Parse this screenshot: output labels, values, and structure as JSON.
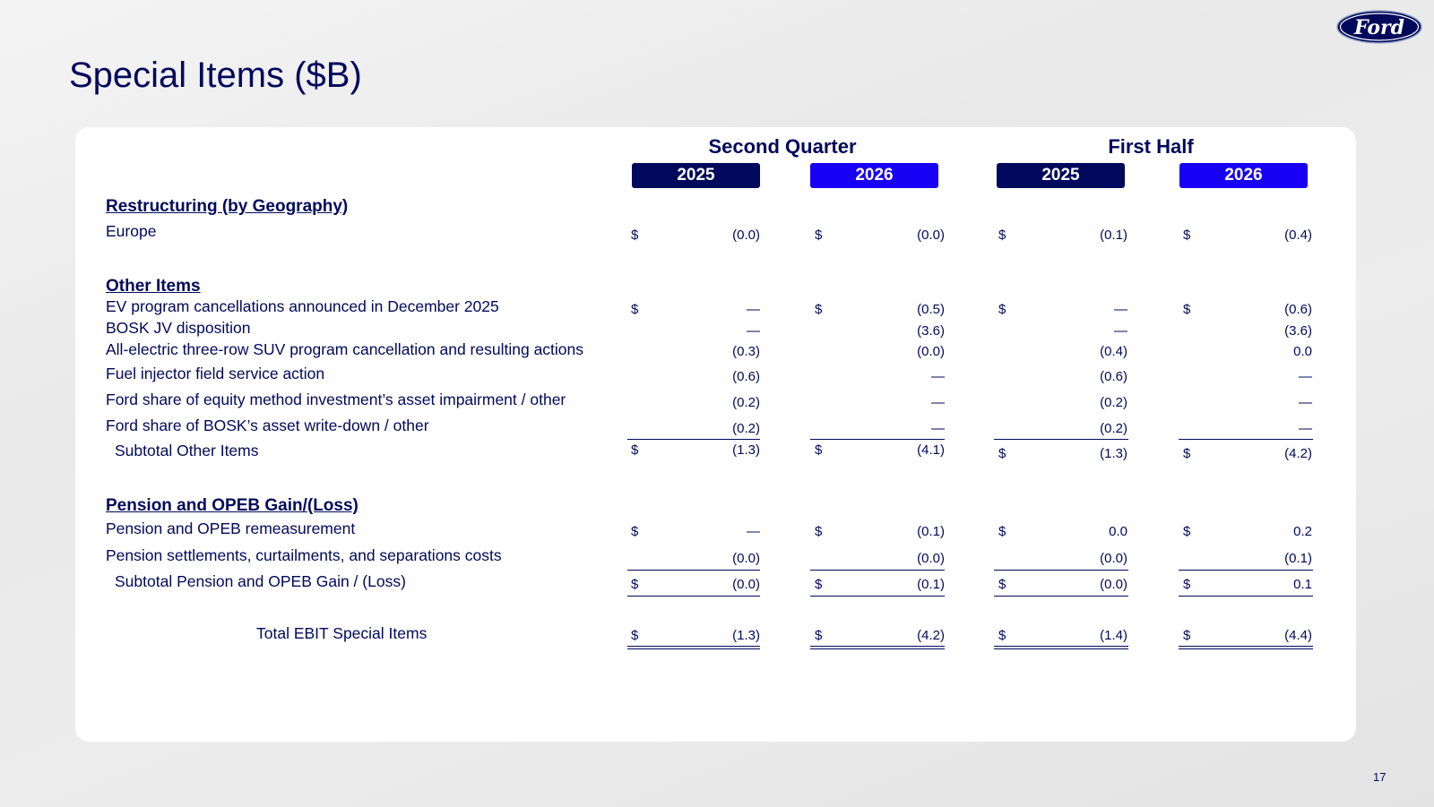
{
  "page": {
    "title": "Special Items ($B)",
    "page_number": "17"
  },
  "logo": {
    "text": "Ford",
    "color": "#00095b"
  },
  "groups": [
    {
      "title": "Second Quarter",
      "years": [
        "2025",
        "2026"
      ]
    },
    {
      "title": "First Half",
      "years": [
        "2025",
        "2026"
      ]
    }
  ],
  "year_colors": {
    "prior": "#00095b",
    "current": "#1700f4"
  },
  "currency_symbol": "$",
  "sections": {
    "restructuring": "Restructuring (by Geography)",
    "other": "Other Items",
    "pension": "Pension and OPEB Gain/(Loss)"
  },
  "rows": [
    {
      "label": "Europe",
      "values": [
        "(0.0)",
        "(0.0)",
        "(0.1)",
        "(0.4)"
      ]
    },
    {
      "label": "EV program cancellations announced in December 2025",
      "values": [
        "—",
        "(0.5)",
        "—",
        "(0.6)"
      ]
    },
    {
      "label": "BOSK JV disposition",
      "values": [
        "—",
        "(3.6)",
        "—",
        "(3.6)"
      ]
    },
    {
      "label": "All-electric three-row SUV program cancellation and resulting actions",
      "values": [
        "(0.3)",
        "(0.0)",
        "(0.4)",
        "0.0"
      ]
    },
    {
      "label": "Fuel injector field service action",
      "values": [
        "(0.6)",
        "—",
        "(0.6)",
        "—"
      ]
    },
    {
      "label": "Ford share of equity method investment’s asset impairment / other",
      "values": [
        "(0.2)",
        "—",
        "(0.2)",
        "—"
      ]
    },
    {
      "label": "Ford share of BOSK’s asset write-down / other",
      "values": [
        "(0.2)",
        "—",
        "(0.2)",
        "—"
      ]
    },
    {
      "label": "Subtotal Other Items",
      "values": [
        "(1.3)",
        "(4.1)",
        "(1.3)",
        "(4.2)"
      ]
    },
    {
      "label": "Pension and OPEB remeasurement",
      "values": [
        "—",
        "(0.1)",
        "0.0",
        "0.2"
      ]
    },
    {
      "label": "Pension settlements, curtailments, and separations costs",
      "values": [
        "(0.0)",
        "(0.0)",
        "(0.0)",
        "(0.1)"
      ]
    },
    {
      "label": "Subtotal Pension and OPEB Gain / (Loss)",
      "values": [
        "(0.0)",
        "(0.1)",
        "(0.0)",
        "0.1"
      ]
    },
    {
      "label": "Total EBIT Special Items",
      "values": [
        "(1.3)",
        "(4.2)",
        "(1.4)",
        "(4.4)"
      ]
    }
  ]
}
